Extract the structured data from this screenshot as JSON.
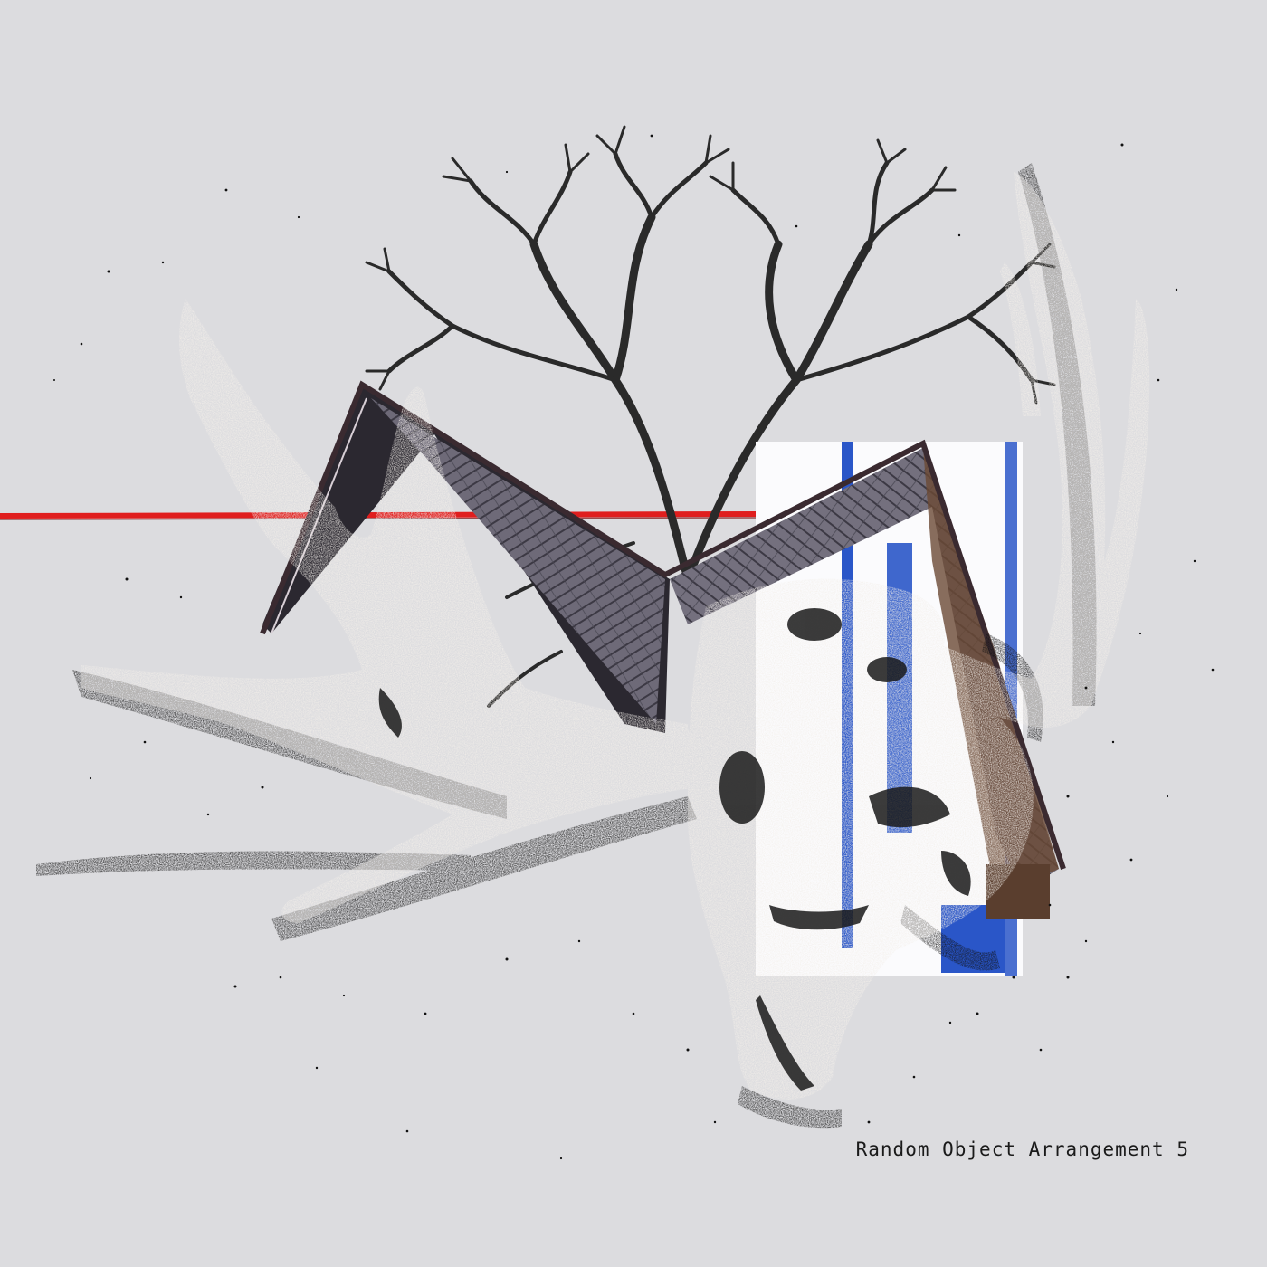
{
  "artwork": {
    "caption": "Random Object Arrangement 5",
    "background_color": "#dcdcdf",
    "accent_line_color": "#e01e1e",
    "panel_blue_color": "#2a56c8",
    "roof_color": "#6e6a78",
    "bone_color": "#f3efea",
    "ink_color": "#111111",
    "elements": [
      "bare-tree",
      "house-roof",
      "white-blue-panel",
      "red-horizon-line",
      "moose-skull-with-antlers",
      "scattered-ink-speckles"
    ]
  }
}
